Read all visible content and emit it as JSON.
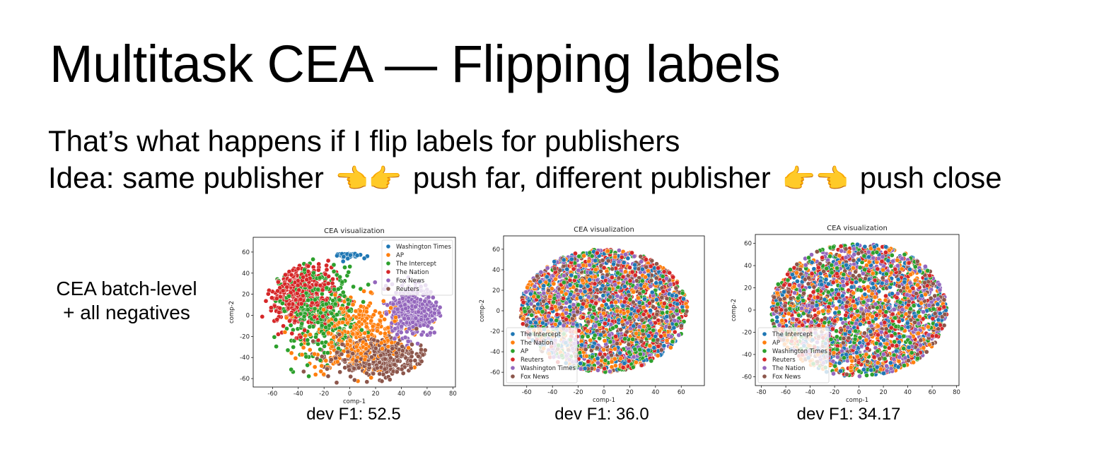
{
  "slide": {
    "title": "Multitask CEA — Flipping labels",
    "line1": "That’s what happens if I flip labels for publishers",
    "line2_a": "Idea: same publisher",
    "line2_b": "push far, different publisher",
    "line2_c": "push close",
    "hands_apart_icon": "👈👉",
    "hands_together_icon": "👉👈",
    "side_label_1": "CEA batch-level",
    "side_label_2": "+ all negatives"
  },
  "colors": {
    "blue": "#1f77b4",
    "orange": "#ff7f0e",
    "green": "#2ca02c",
    "red": "#d62728",
    "purple": "#9467bd",
    "brown": "#8c564b"
  },
  "chart_data": [
    {
      "type": "scatter",
      "title": "CEA visualization",
      "xlabel": "comp-1",
      "ylabel": "comp-2",
      "xlim": [
        -75,
        82
      ],
      "ylim": [
        -68,
        74
      ],
      "xticks": [
        -60,
        -40,
        -20,
        0,
        20,
        40,
        60,
        80
      ],
      "yticks": [
        -60,
        -40,
        -20,
        0,
        20,
        40,
        60
      ],
      "legend_position": "upper right",
      "legend": [
        "Washington Times",
        "AP",
        "The Intercept",
        "The Nation",
        "Fox News",
        "Reuters"
      ],
      "series": [
        {
          "name": "Washington Times",
          "color": "#1f77b4",
          "cluster": {
            "cx": 0,
            "cy": 63,
            "rx": 10,
            "ry": 7
          }
        },
        {
          "name": "AP",
          "color": "#ff7f0e",
          "cluster": {
            "cx": 5,
            "cy": -20,
            "rx": 38,
            "ry": 35
          }
        },
        {
          "name": "The Intercept",
          "color": "#2ca02c",
          "cluster": {
            "cx": -25,
            "cy": 5,
            "rx": 30,
            "ry": 40
          }
        },
        {
          "name": "The Nation",
          "color": "#d62728",
          "cluster": {
            "cx": -40,
            "cy": 20,
            "rx": 28,
            "ry": 35
          }
        },
        {
          "name": "Fox News",
          "color": "#9467bd",
          "cluster": {
            "cx": 50,
            "cy": 5,
            "rx": 18,
            "ry": 25
          }
        },
        {
          "name": "Reuters",
          "color": "#8c564b",
          "cluster": {
            "cx": 20,
            "cy": -40,
            "rx": 40,
            "ry": 20
          }
        }
      ],
      "caption": "dev F1: 52.5"
    },
    {
      "type": "scatter",
      "title": "CEA visualization",
      "xlabel": "comp-1",
      "ylabel": "comp-2",
      "xlim": [
        -78,
        78
      ],
      "ylim": [
        -73,
        73
      ],
      "xticks": [
        -60,
        -40,
        -20,
        0,
        20,
        40,
        60
      ],
      "yticks": [
        -60,
        -40,
        -20,
        0,
        20,
        40,
        60
      ],
      "legend_position": "lower left",
      "legend": [
        "The Intercept",
        "The Nation",
        "AP",
        "Reuters",
        "Washington Times",
        "Fox News"
      ],
      "series": [
        {
          "name": "The Intercept",
          "color": "#1f77b4",
          "cluster": {
            "cx": 0,
            "cy": 0,
            "rx": 65,
            "ry": 60
          }
        },
        {
          "name": "The Nation",
          "color": "#ff7f0e",
          "cluster": {
            "cx": 0,
            "cy": 0,
            "rx": 65,
            "ry": 60
          }
        },
        {
          "name": "AP",
          "color": "#2ca02c",
          "cluster": {
            "cx": 0,
            "cy": 0,
            "rx": 65,
            "ry": 60
          }
        },
        {
          "name": "Reuters",
          "color": "#d62728",
          "cluster": {
            "cx": 0,
            "cy": 0,
            "rx": 65,
            "ry": 60
          }
        },
        {
          "name": "Washington Times",
          "color": "#9467bd",
          "cluster": {
            "cx": 0,
            "cy": 0,
            "rx": 65,
            "ry": 60
          }
        },
        {
          "name": "Fox News",
          "color": "#8c564b",
          "cluster": {
            "cx": 0,
            "cy": 0,
            "rx": 65,
            "ry": 60
          }
        }
      ],
      "caption": "dev F1: 36.0"
    },
    {
      "type": "scatter",
      "title": "CEA visualization",
      "xlabel": "comp-1",
      "ylabel": "comp-2",
      "xlim": [
        -85,
        82
      ],
      "ylim": [
        -68,
        68
      ],
      "xticks": [
        -80,
        -60,
        -40,
        -20,
        0,
        20,
        40,
        60,
        80
      ],
      "yticks": [
        -60,
        -40,
        -20,
        0,
        20,
        40,
        60
      ],
      "legend_position": "lower left",
      "legend": [
        "The Intercept",
        "AP",
        "Washington Times",
        "Reuters",
        "The Nation",
        "Fox News"
      ],
      "series": [
        {
          "name": "The Intercept",
          "color": "#1f77b4",
          "cluster": {
            "cx": 0,
            "cy": 0,
            "rx": 72,
            "ry": 60
          }
        },
        {
          "name": "AP",
          "color": "#ff7f0e",
          "cluster": {
            "cx": 0,
            "cy": 0,
            "rx": 72,
            "ry": 60
          }
        },
        {
          "name": "Washington Times",
          "color": "#2ca02c",
          "cluster": {
            "cx": 0,
            "cy": 0,
            "rx": 72,
            "ry": 60
          }
        },
        {
          "name": "Reuters",
          "color": "#d62728",
          "cluster": {
            "cx": 0,
            "cy": 0,
            "rx": 72,
            "ry": 60
          }
        },
        {
          "name": "The Nation",
          "color": "#9467bd",
          "cluster": {
            "cx": 0,
            "cy": 0,
            "rx": 72,
            "ry": 60
          }
        },
        {
          "name": "Fox News",
          "color": "#8c564b",
          "cluster": {
            "cx": 0,
            "cy": 0,
            "rx": 72,
            "ry": 60
          }
        }
      ],
      "caption": "dev F1: 34.17"
    }
  ]
}
